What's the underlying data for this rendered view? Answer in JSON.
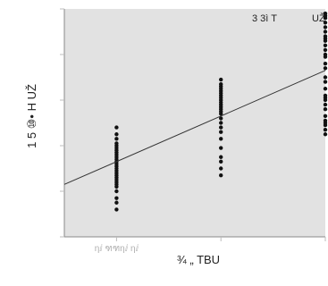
{
  "chart_data": {
    "type": "scatter",
    "title": "",
    "xlabel": "¾ „ TBU",
    "ylabel": "1 5 ⑩• H UŽ",
    "annotation": "3 3ì T",
    "corner_label": "UŽ",
    "x_tick_labels": [
      "ηⅈ",
      "ฑฑηⅈ",
      "ηⅈ"
    ],
    "xlim": [
      0.5,
      3.0
    ],
    "ylim": [
      0,
      100
    ],
    "grid": false,
    "legend": "none",
    "colors": {
      "panel": "#e2e2e2",
      "points": "#111111",
      "fit_line": "#333333",
      "frame": "#8a8a8a",
      "ticks": "#bcbcbc"
    },
    "series": [
      {
        "x": 1,
        "y": [
          12,
          15,
          17,
          20,
          22,
          23,
          24,
          25,
          26,
          27,
          28,
          29,
          30,
          31,
          32,
          33,
          34,
          35,
          36,
          37,
          38,
          39,
          40,
          41,
          43,
          45,
          48
        ]
      },
      {
        "x": 2,
        "y": [
          27,
          30,
          33,
          35,
          39,
          43,
          46,
          48,
          50,
          52,
          54,
          55,
          56,
          57,
          58,
          59,
          60,
          61,
          62,
          63,
          64,
          65,
          66,
          67,
          69
        ]
      },
      {
        "x": 3,
        "y": [
          45,
          47,
          49,
          50,
          51,
          53,
          56,
          58,
          60,
          61,
          62,
          65,
          68,
          70,
          74,
          76,
          79,
          80,
          82,
          84,
          86,
          87,
          88,
          90,
          92,
          94,
          96,
          97,
          98
        ]
      }
    ],
    "fit_line": {
      "x": [
        0.5,
        3.0
      ],
      "y": [
        23,
        73
      ]
    }
  }
}
